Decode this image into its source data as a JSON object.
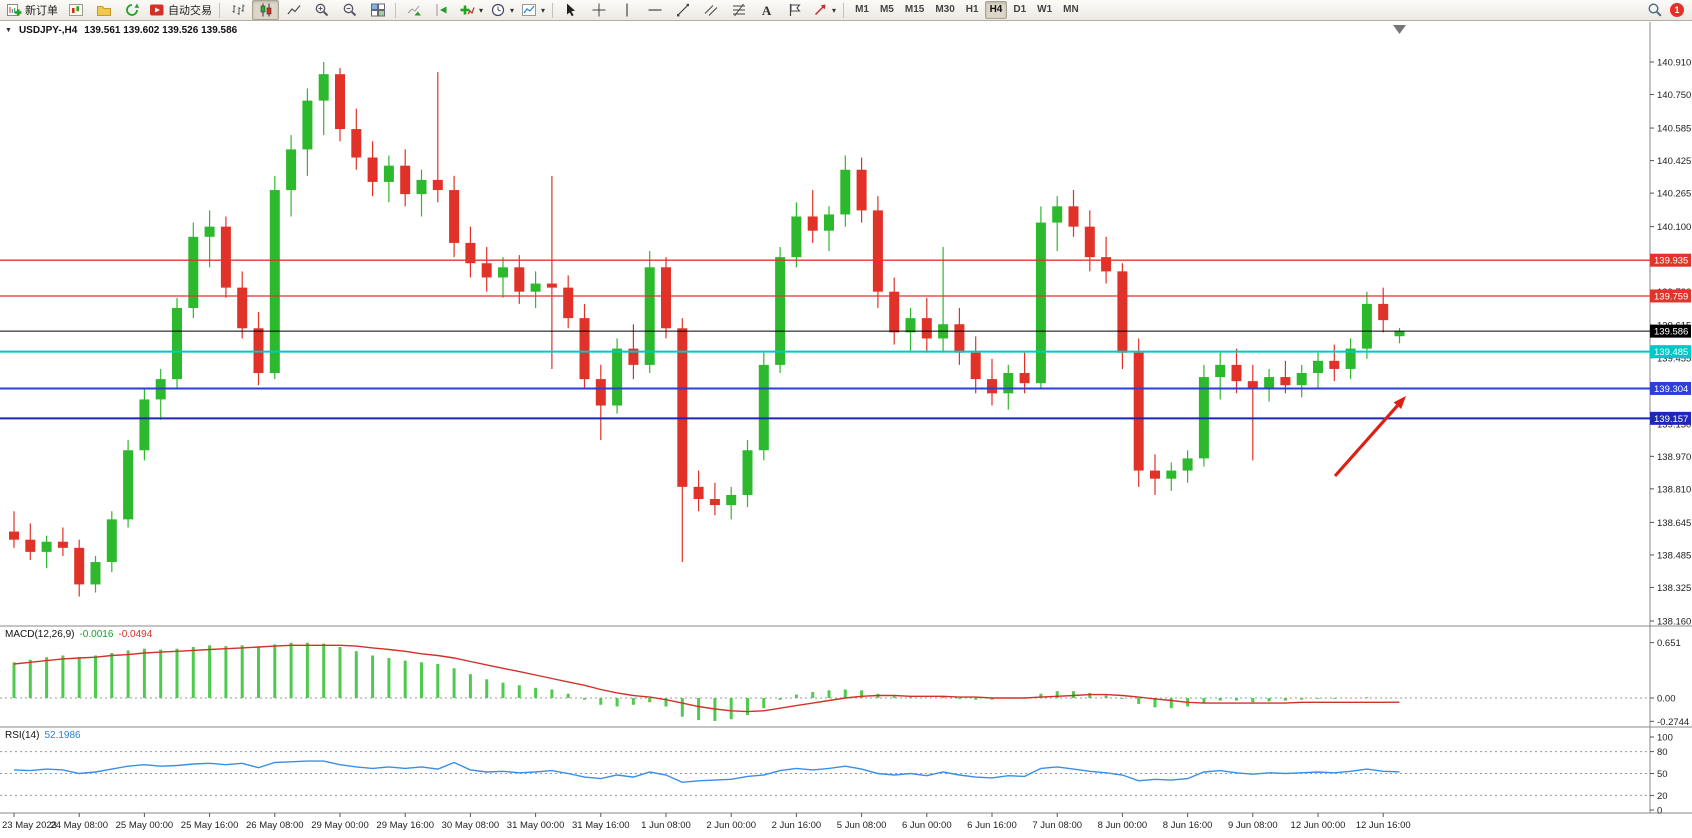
{
  "toolbar": {
    "new_order": "新订单",
    "autotrading": "自动交易",
    "timeframes": [
      "M1",
      "M5",
      "M15",
      "M30",
      "H1",
      "H4",
      "D1",
      "W1",
      "MN"
    ],
    "active_timeframe": "H4",
    "notification_badge": "1",
    "text_tool_glyph": "A",
    "icon_names": [
      "new-order",
      "new-chart",
      "profiles",
      "refresh",
      "autotrading",
      "bar-chart-type",
      "candlestick-type",
      "line-chart-type",
      "zoom-in",
      "zoom-out",
      "tile-windows",
      "auto-scroll",
      "chart-shift",
      "indicators",
      "periods-clock",
      "templates",
      "cursor",
      "crosshair",
      "vertical-line",
      "horizontal-line",
      "trendline",
      "equidistant-channel",
      "fibonacci",
      "text",
      "label",
      "arrows",
      "search",
      "notification"
    ]
  },
  "chart": {
    "title_symbol": "USDJPY-,H4",
    "title_ohlc": "139.561 139.602 139.526 139.586"
  },
  "indicators": {
    "macd_name": "MACD(12,26,9)",
    "macd_value_main": "-0.0016",
    "macd_value_signal": "-0.0494",
    "rsi_name": "RSI(14)",
    "rsi_value": "52.1986"
  },
  "colors": {
    "bull": "#2db92d",
    "bear": "#e03228",
    "macd_hist": "#4ecb4e",
    "macd_signal": "#d13228",
    "rsi": "#3b8ee8",
    "bid_line": "#000000",
    "axis_text": "#222222"
  },
  "chart_data": {
    "type": "candlestick",
    "symbol": "USDJPY-",
    "timeframe": "H4",
    "current_bar": {
      "open": 139.561,
      "high": 139.602,
      "low": 139.526,
      "close": 139.586
    },
    "price_axis": {
      "max": 140.91,
      "min": 138.16,
      "ticks": [
        "140.910",
        "140.750",
        "140.585",
        "140.425",
        "140.265",
        "140.100",
        "139.940",
        "139.780",
        "139.615",
        "139.455",
        "139.295",
        "139.130",
        "138.970",
        "138.810",
        "138.645",
        "138.485",
        "138.325",
        "138.160"
      ]
    },
    "time_axis_labels": [
      "23 May 2023",
      "24 May 08:00",
      "25 May 00:00",
      "25 May 16:00",
      "26 May 08:00",
      "29 May 00:00",
      "29 May 16:00",
      "30 May 08:00",
      "31 May 00:00",
      "31 May 16:00",
      "1 Jun 08:00",
      "2 Jun 00:00",
      "2 Jun 16:00",
      "5 Jun 08:00",
      "6 Jun 00:00",
      "6 Jun 16:00",
      "7 Jun 08:00",
      "8 Jun 00:00",
      "8 Jun 16:00",
      "9 Jun 08:00",
      "12 Jun 00:00",
      "12 Jun 16:00"
    ],
    "candles_ohlc": [
      [
        138.6,
        138.7,
        138.52,
        138.56
      ],
      [
        138.56,
        138.64,
        138.46,
        138.5
      ],
      [
        138.5,
        138.58,
        138.42,
        138.55
      ],
      [
        138.55,
        138.62,
        138.48,
        138.52
      ],
      [
        138.52,
        138.56,
        138.28,
        138.34
      ],
      [
        138.34,
        138.48,
        138.3,
        138.45
      ],
      [
        138.45,
        138.7,
        138.4,
        138.66
      ],
      [
        138.66,
        139.05,
        138.62,
        139.0
      ],
      [
        139.0,
        139.3,
        138.95,
        139.25
      ],
      [
        139.25,
        139.4,
        139.15,
        139.35
      ],
      [
        139.35,
        139.75,
        139.3,
        139.7
      ],
      [
        139.7,
        140.12,
        139.65,
        140.05
      ],
      [
        140.05,
        140.18,
        139.9,
        140.1
      ],
      [
        140.1,
        140.15,
        139.75,
        139.8
      ],
      [
        139.8,
        139.88,
        139.55,
        139.6
      ],
      [
        139.6,
        139.68,
        139.32,
        139.38
      ],
      [
        139.38,
        140.35,
        139.35,
        140.28
      ],
      [
        140.28,
        140.55,
        140.15,
        140.48
      ],
      [
        140.48,
        140.78,
        140.35,
        140.72
      ],
      [
        140.72,
        140.91,
        140.55,
        140.85
      ],
      [
        140.85,
        140.88,
        140.52,
        140.58
      ],
      [
        140.58,
        140.68,
        140.38,
        140.44
      ],
      [
        140.44,
        140.52,
        140.25,
        140.32
      ],
      [
        140.32,
        140.45,
        140.22,
        140.4
      ],
      [
        140.4,
        140.48,
        140.2,
        140.26
      ],
      [
        140.26,
        140.38,
        140.15,
        140.33
      ],
      [
        140.33,
        140.86,
        140.22,
        140.28
      ],
      [
        140.28,
        140.35,
        139.95,
        140.02
      ],
      [
        140.02,
        140.1,
        139.85,
        139.92
      ],
      [
        139.92,
        140.0,
        139.78,
        139.85
      ],
      [
        139.85,
        139.95,
        139.75,
        139.9
      ],
      [
        139.9,
        139.96,
        139.72,
        139.78
      ],
      [
        139.78,
        139.88,
        139.7,
        139.82
      ],
      [
        139.82,
        140.35,
        139.4,
        139.8
      ],
      [
        139.8,
        139.86,
        139.6,
        139.65
      ],
      [
        139.65,
        139.72,
        139.3,
        139.35
      ],
      [
        139.35,
        139.42,
        139.05,
        139.22
      ],
      [
        139.22,
        139.55,
        139.18,
        139.5
      ],
      [
        139.5,
        139.62,
        139.35,
        139.42
      ],
      [
        139.42,
        139.98,
        139.38,
        139.9
      ],
      [
        139.9,
        139.95,
        139.55,
        139.6
      ],
      [
        139.6,
        139.65,
        138.45,
        138.82
      ],
      [
        138.82,
        138.9,
        138.7,
        138.76
      ],
      [
        138.76,
        138.84,
        138.68,
        138.73
      ],
      [
        138.73,
        138.82,
        138.66,
        138.78
      ],
      [
        138.78,
        139.05,
        138.72,
        139.0
      ],
      [
        139.0,
        139.48,
        138.95,
        139.42
      ],
      [
        139.42,
        140.0,
        139.38,
        139.95
      ],
      [
        139.95,
        140.22,
        139.9,
        140.15
      ],
      [
        140.15,
        140.28,
        140.02,
        140.08
      ],
      [
        140.08,
        140.2,
        139.98,
        140.16
      ],
      [
        140.16,
        140.45,
        140.1,
        140.38
      ],
      [
        140.38,
        140.44,
        140.12,
        140.18
      ],
      [
        140.18,
        140.25,
        139.7,
        139.78
      ],
      [
        139.78,
        139.85,
        139.52,
        139.58
      ],
      [
        139.58,
        139.7,
        139.48,
        139.65
      ],
      [
        139.65,
        139.75,
        139.48,
        139.55
      ],
      [
        139.55,
        140.0,
        139.48,
        139.62
      ],
      [
        139.62,
        139.7,
        139.42,
        139.48
      ],
      [
        139.48,
        139.56,
        139.28,
        139.35
      ],
      [
        139.35,
        139.45,
        139.22,
        139.28
      ],
      [
        139.28,
        139.42,
        139.2,
        139.38
      ],
      [
        139.38,
        139.48,
        139.28,
        139.33
      ],
      [
        139.33,
        140.2,
        139.3,
        140.12
      ],
      [
        140.12,
        140.25,
        139.98,
        140.2
      ],
      [
        140.2,
        140.28,
        140.05,
        140.1
      ],
      [
        140.1,
        140.18,
        139.88,
        139.95
      ],
      [
        139.95,
        140.05,
        139.82,
        139.88
      ],
      [
        139.88,
        139.92,
        139.4,
        139.48
      ],
      [
        139.48,
        139.55,
        138.82,
        138.9
      ],
      [
        138.9,
        138.98,
        138.78,
        138.86
      ],
      [
        138.86,
        138.94,
        138.8,
        138.9
      ],
      [
        138.9,
        139.0,
        138.84,
        138.96
      ],
      [
        138.96,
        139.42,
        138.92,
        139.36
      ],
      [
        139.36,
        139.48,
        139.25,
        139.42
      ],
      [
        139.42,
        139.5,
        139.28,
        139.34
      ],
      [
        139.34,
        139.42,
        138.95,
        139.3
      ],
      [
        139.3,
        139.4,
        139.24,
        139.36
      ],
      [
        139.36,
        139.44,
        139.28,
        139.32
      ],
      [
        139.32,
        139.42,
        139.26,
        139.38
      ],
      [
        139.38,
        139.48,
        139.3,
        139.44
      ],
      [
        139.44,
        139.52,
        139.34,
        139.4
      ],
      [
        139.4,
        139.55,
        139.35,
        139.5
      ],
      [
        139.5,
        139.78,
        139.45,
        139.72
      ],
      [
        139.72,
        139.8,
        139.58,
        139.64
      ],
      [
        139.561,
        139.602,
        139.526,
        139.586
      ]
    ],
    "hlines": [
      {
        "price": 139.935,
        "label": "139.935",
        "color": "#e3342c",
        "width": 1.3
      },
      {
        "price": 139.759,
        "label": "139.759",
        "color": "#e3342c",
        "width": 1.3
      },
      {
        "price": 139.586,
        "label": "139.586",
        "color": "#000000",
        "width": 1,
        "role": "bid-price"
      },
      {
        "price": 139.485,
        "label": "139.485",
        "color": "#00c7c7",
        "width": 2
      },
      {
        "price": 139.304,
        "label": "139.304",
        "color": "#2d3fd4",
        "width": 2
      },
      {
        "price": 139.157,
        "label": "139.157",
        "color": "#1f27b8",
        "width": 2
      }
    ],
    "macd": {
      "name": "MACD(12,26,9)",
      "axis": [
        "0.651",
        "0.00",
        "-0.2744"
      ],
      "histogram": [
        0.42,
        0.45,
        0.48,
        0.5,
        0.48,
        0.5,
        0.53,
        0.56,
        0.58,
        0.57,
        0.58,
        0.6,
        0.62,
        0.61,
        0.62,
        0.6,
        0.63,
        0.65,
        0.65,
        0.64,
        0.6,
        0.55,
        0.5,
        0.47,
        0.44,
        0.42,
        0.4,
        0.35,
        0.28,
        0.22,
        0.18,
        0.15,
        0.12,
        0.1,
        0.05,
        -0.02,
        -0.08,
        -0.1,
        -0.08,
        -0.05,
        -0.1,
        -0.22,
        -0.26,
        -0.27,
        -0.25,
        -0.2,
        -0.12,
        -0.02,
        0.04,
        0.07,
        0.09,
        0.1,
        0.09,
        0.05,
        0.02,
        0.01,
        0.0,
        0.02,
        -0.01,
        -0.02,
        -0.02,
        0.0,
        0.01,
        0.05,
        0.08,
        0.08,
        0.06,
        0.03,
        -0.01,
        -0.07,
        -0.11,
        -0.12,
        -0.1,
        -0.06,
        -0.03,
        -0.03,
        -0.05,
        -0.04,
        -0.03,
        -0.02,
        -0.01,
        -0.01,
        0.0,
        0.01,
        0.0,
        -0.0016
      ],
      "signal": [
        0.4,
        0.42,
        0.44,
        0.46,
        0.47,
        0.48,
        0.5,
        0.51,
        0.53,
        0.54,
        0.55,
        0.56,
        0.57,
        0.58,
        0.59,
        0.6,
        0.61,
        0.62,
        0.62,
        0.62,
        0.62,
        0.61,
        0.59,
        0.57,
        0.55,
        0.52,
        0.5,
        0.47,
        0.43,
        0.39,
        0.35,
        0.31,
        0.27,
        0.23,
        0.19,
        0.15,
        0.1,
        0.06,
        0.03,
        0.01,
        -0.02,
        -0.06,
        -0.1,
        -0.13,
        -0.15,
        -0.16,
        -0.15,
        -0.12,
        -0.09,
        -0.06,
        -0.03,
        0.0,
        0.02,
        0.03,
        0.03,
        0.02,
        0.02,
        0.02,
        0.01,
        0.01,
        0.0,
        0.0,
        0.0,
        0.01,
        0.02,
        0.03,
        0.04,
        0.04,
        0.03,
        0.01,
        -0.01,
        -0.03,
        -0.05,
        -0.06,
        -0.06,
        -0.06,
        -0.06,
        -0.06,
        -0.06,
        -0.05,
        -0.05,
        -0.05,
        -0.05,
        -0.05,
        -0.05,
        -0.0494
      ]
    },
    "rsi": {
      "name": "RSI(14)",
      "axis": [
        "100",
        "80",
        "50",
        "20",
        "0"
      ],
      "levels": [
        80,
        50,
        20
      ],
      "values": [
        55,
        54,
        56,
        55,
        50,
        52,
        56,
        60,
        62,
        60,
        61,
        63,
        64,
        62,
        64,
        58,
        65,
        66,
        67,
        67,
        62,
        59,
        57,
        59,
        57,
        59,
        56,
        65,
        55,
        52,
        53,
        51,
        52,
        54,
        50,
        45,
        43,
        48,
        45,
        52,
        48,
        38,
        40,
        41,
        42,
        46,
        48,
        54,
        57,
        55,
        57,
        60,
        56,
        50,
        48,
        50,
        47,
        52,
        48,
        45,
        44,
        47,
        46,
        57,
        59,
        56,
        53,
        51,
        48,
        40,
        42,
        41,
        43,
        52,
        54,
        51,
        49,
        51,
        50,
        51,
        52,
        51,
        53,
        56,
        53,
        52.1986
      ]
    },
    "annotation_arrow": {
      "from": [
        1335,
        454
      ],
      "to": [
        1406,
        374
      ],
      "color": "#dd1f14"
    }
  }
}
